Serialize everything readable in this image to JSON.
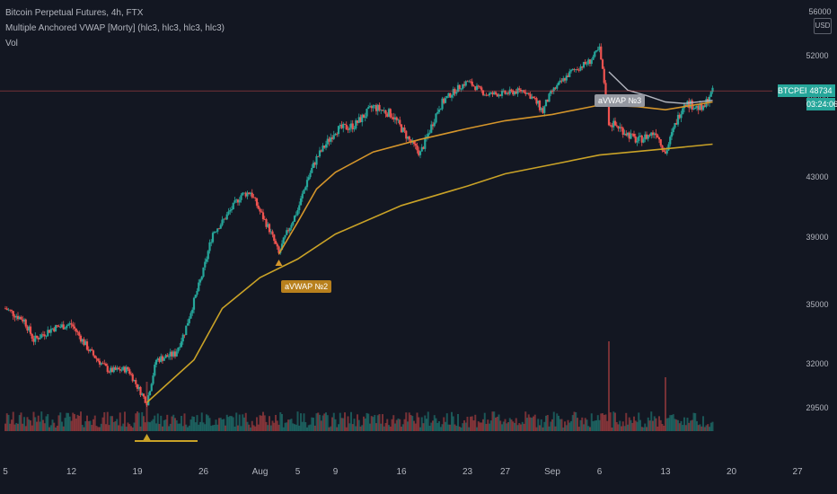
{
  "legend": {
    "title": "Bitcoin Perpetual Futures, 4h, FTX",
    "indicator": "Multiple Anchored VWAP [Morty] (hlc3, hlc3, hlc3, hlc3)",
    "volume": "Vol"
  },
  "price_scale": {
    "currency": "USD",
    "symbol_tag": "BTCPERP",
    "last_price": "48734",
    "countdown": "03:24:06"
  },
  "anchors": {
    "vwap2": "aVWAP №2",
    "vwap3": "aVWAP №3"
  },
  "colors": {
    "background": "#131722",
    "up": "#26a69a",
    "down": "#ef5350",
    "vwap1": "#c9a227",
    "vwap2": "#d4952b",
    "vwap3": "#b2b5be",
    "price_line": "#ef5350"
  },
  "chart_data": {
    "type": "candlestick",
    "timeframe": "4h",
    "x_tick_labels": [
      "5",
      "12",
      "19",
      "26",
      "Aug",
      "5",
      "9",
      "16",
      "23",
      "27",
      "Sep",
      "6",
      "13",
      "20",
      "27"
    ],
    "x_tick_dates": [
      "2021-07-05",
      "2021-07-12",
      "2021-07-19",
      "2021-07-26",
      "2021-08-01",
      "2021-08-05",
      "2021-08-09",
      "2021-08-16",
      "2021-08-23",
      "2021-08-27",
      "2021-09-01",
      "2021-09-06",
      "2021-09-13",
      "2021-09-20",
      "2021-09-27"
    ],
    "y_tick_labels": [
      "29500",
      "32000",
      "35000",
      "39000",
      "43000",
      "48000",
      "52000",
      "56000"
    ],
    "y_ticks": [
      29500,
      32000,
      35000,
      39000,
      43000,
      48000,
      52000,
      56000
    ],
    "ylim": [
      27500,
      56000
    ],
    "last_price": 48734,
    "price_path": [
      [
        "2021-07-05",
        34800
      ],
      [
        "2021-07-07",
        34200
      ],
      [
        "2021-07-08",
        33200
      ],
      [
        "2021-07-10",
        33800
      ],
      [
        "2021-07-12",
        34000
      ],
      [
        "2021-07-14",
        32600
      ],
      [
        "2021-07-16",
        31600
      ],
      [
        "2021-07-18",
        31700
      ],
      [
        "2021-07-19",
        30700
      ],
      [
        "2021-07-20",
        29800
      ],
      [
        "2021-07-21",
        32200
      ],
      [
        "2021-07-23",
        32500
      ],
      [
        "2021-07-24",
        33600
      ],
      [
        "2021-07-25",
        35200
      ],
      [
        "2021-07-26",
        37000
      ],
      [
        "2021-07-27",
        39300
      ],
      [
        "2021-07-28",
        40000
      ],
      [
        "2021-07-30",
        41800
      ],
      [
        "2021-07-31",
        42000
      ],
      [
        "2021-08-01",
        40700
      ],
      [
        "2021-08-02",
        39500
      ],
      [
        "2021-08-03",
        38000
      ],
      [
        "2021-08-04",
        39500
      ],
      [
        "2021-08-05",
        40800
      ],
      [
        "2021-08-06",
        42800
      ],
      [
        "2021-08-07",
        44200
      ],
      [
        "2021-08-09",
        46000
      ],
      [
        "2021-08-11",
        46300
      ],
      [
        "2021-08-13",
        47500
      ],
      [
        "2021-08-15",
        47000
      ],
      [
        "2021-08-17",
        45200
      ],
      [
        "2021-08-18",
        44500
      ],
      [
        "2021-08-20",
        47500
      ],
      [
        "2021-08-22",
        49000
      ],
      [
        "2021-08-23",
        49600
      ],
      [
        "2021-08-25",
        48400
      ],
      [
        "2021-08-27",
        48500
      ],
      [
        "2021-08-29",
        48800
      ],
      [
        "2021-08-31",
        47200
      ],
      [
        "2021-09-01",
        48700
      ],
      [
        "2021-09-03",
        50500
      ],
      [
        "2021-09-05",
        51500
      ],
      [
        "2021-09-06",
        52600
      ],
      [
        "2021-09-07",
        46500
      ],
      [
        "2021-09-08",
        46200
      ],
      [
        "2021-09-10",
        45300
      ],
      [
        "2021-09-12",
        45900
      ],
      [
        "2021-09-13",
        44500
      ],
      [
        "2021-09-14",
        46300
      ],
      [
        "2021-09-15",
        47800
      ],
      [
        "2021-09-17",
        47300
      ],
      [
        "2021-09-18",
        48734
      ]
    ],
    "series": [
      {
        "name": "aVWAP №1",
        "anchor": "2021-07-20",
        "values": [
          [
            "2021-07-20",
            29800
          ],
          [
            "2021-07-25",
            32200
          ],
          [
            "2021-07-28",
            34800
          ],
          [
            "2021-08-01",
            36600
          ],
          [
            "2021-08-05",
            37700
          ],
          [
            "2021-08-09",
            39200
          ],
          [
            "2021-08-16",
            41100
          ],
          [
            "2021-08-23",
            42400
          ],
          [
            "2021-08-27",
            43200
          ],
          [
            "2021-09-01",
            43800
          ],
          [
            "2021-09-06",
            44400
          ],
          [
            "2021-09-13",
            44800
          ],
          [
            "2021-09-18",
            45100
          ]
        ]
      },
      {
        "name": "aVWAP №2",
        "anchor": "2021-08-03",
        "values": [
          [
            "2021-08-03",
            38000
          ],
          [
            "2021-08-05",
            40000
          ],
          [
            "2021-08-07",
            42200
          ],
          [
            "2021-08-09",
            43300
          ],
          [
            "2021-08-13",
            44600
          ],
          [
            "2021-08-18",
            45400
          ],
          [
            "2021-08-23",
            46100
          ],
          [
            "2021-08-27",
            46600
          ],
          [
            "2021-09-01",
            47000
          ],
          [
            "2021-09-06",
            47600
          ],
          [
            "2021-09-10",
            47500
          ],
          [
            "2021-09-13",
            47300
          ],
          [
            "2021-09-18",
            47800
          ]
        ]
      },
      {
        "name": "aVWAP №3",
        "anchor": "2021-09-07",
        "values": [
          [
            "2021-09-07",
            50500
          ],
          [
            "2021-09-09",
            48800
          ],
          [
            "2021-09-11",
            48300
          ],
          [
            "2021-09-13",
            47800
          ],
          [
            "2021-09-15",
            47700
          ],
          [
            "2021-09-18",
            47900
          ]
        ]
      }
    ],
    "volume_spikes": [
      [
        "2021-07-20",
        0.55
      ],
      [
        "2021-09-07",
        1.0
      ],
      [
        "2021-09-13",
        0.6
      ]
    ]
  }
}
